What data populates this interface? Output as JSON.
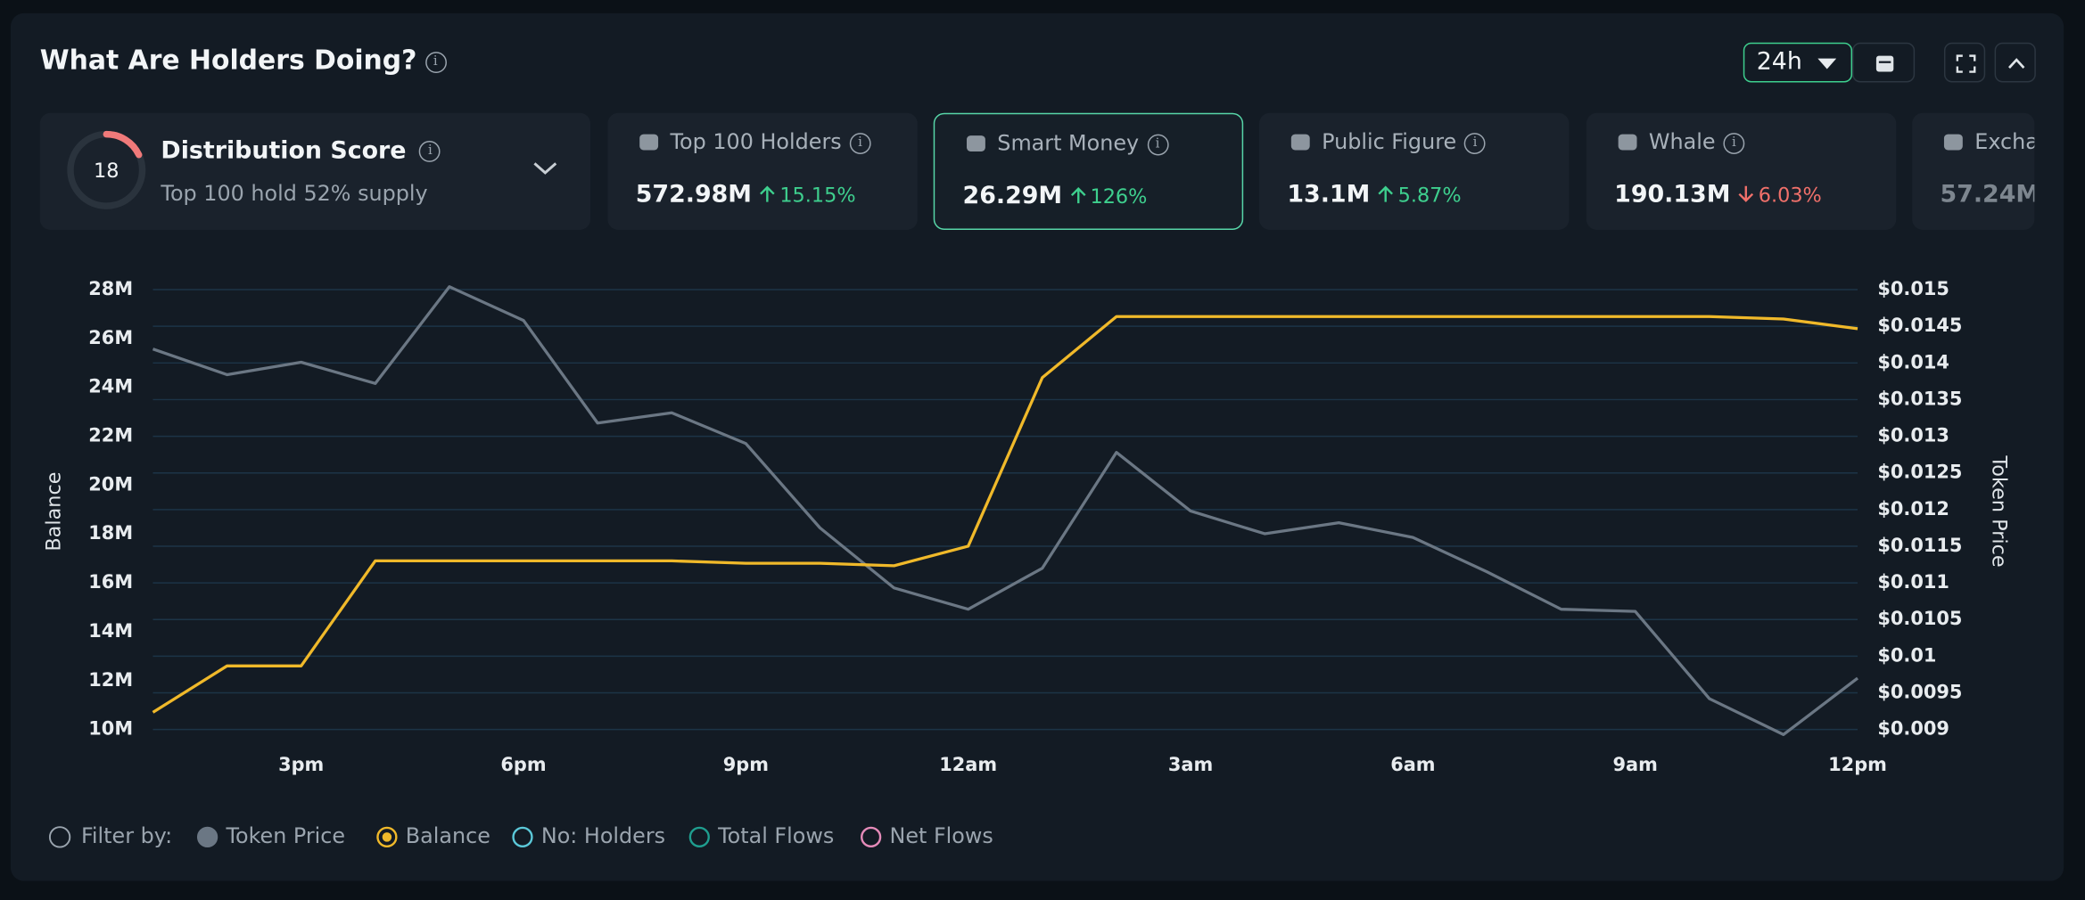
{
  "header": {
    "title": "What Are Holders Doing?",
    "period": "24h"
  },
  "distribution": {
    "score": 18,
    "title": "Distribution Score",
    "subtitle": "Top 100 hold 52% supply"
  },
  "cards": [
    {
      "title": "Top 100 Holders",
      "value": "572.98M",
      "change": "15.15%",
      "direction": "up",
      "selected": false
    },
    {
      "title": "Smart Money",
      "value": "26.29M",
      "change": "126%",
      "direction": "up",
      "selected": true
    },
    {
      "title": "Public Figure",
      "value": "13.1M",
      "change": "5.87%",
      "direction": "up",
      "selected": false
    },
    {
      "title": "Whale",
      "value": "190.13M",
      "change": "6.03%",
      "direction": "down",
      "selected": false
    },
    {
      "title": "Exchange",
      "value": "57.24M",
      "change": "",
      "direction": "up",
      "selected": false
    }
  ],
  "chart_data": {
    "type": "line",
    "y_label": "Balance",
    "y2_label": "Token Price",
    "categories": [
      null,
      null,
      "3pm",
      null,
      null,
      "6pm",
      null,
      null,
      "9pm",
      null,
      null,
      "12am",
      null,
      null,
      "3am",
      null,
      null,
      "6am",
      null,
      null,
      "9am",
      null,
      null,
      "12pm"
    ],
    "series": [
      {
        "name": "Token Price",
        "color": "#6b7784",
        "axis": "y2",
        "values": [
          0.01419,
          0.01384,
          0.01401,
          0.01372,
          0.01504,
          0.01458,
          0.01318,
          0.01332,
          0.0129,
          0.01175,
          0.01093,
          0.01064,
          0.0112,
          0.01278,
          0.01198,
          0.01167,
          0.01182,
          0.01162,
          0.01115,
          0.01064,
          0.01061,
          0.00942,
          0.00893,
          0.0097
        ]
      },
      {
        "name": "Balance",
        "color": "#f0b92a",
        "values": [
          10700000,
          12600000,
          12600000,
          16900000,
          16900000,
          16900000,
          16900000,
          16900000,
          16800000,
          16800000,
          16700000,
          17500000,
          24400000,
          26900000,
          26900000,
          26900000,
          26900000,
          26900000,
          26900000,
          26900000,
          26900000,
          26900000,
          26800000,
          26400000
        ]
      }
    ],
    "ylim": [
      10000000,
      28000000
    ],
    "yticks": [
      {
        "value": 10000000,
        "label": "10M"
      },
      {
        "value": 12000000,
        "label": "12M"
      },
      {
        "value": 14000000,
        "label": "14M"
      },
      {
        "value": 16000000,
        "label": "16M"
      },
      {
        "value": 18000000,
        "label": "18M"
      },
      {
        "value": 20000000,
        "label": "20M"
      },
      {
        "value": 22000000,
        "label": "22M"
      },
      {
        "value": 24000000,
        "label": "24M"
      },
      {
        "value": 26000000,
        "label": "26M"
      },
      {
        "value": 28000000,
        "label": "28M"
      }
    ],
    "y2lim": [
      0.009,
      0.015
    ],
    "y2ticks": [
      {
        "value": 0.009,
        "label": "$0.009"
      },
      {
        "value": 0.0095,
        "label": "$0.0095"
      },
      {
        "value": 0.01,
        "label": "$0.01"
      },
      {
        "value": 0.0105,
        "label": "$0.0105"
      },
      {
        "value": 0.011,
        "label": "$0.011"
      },
      {
        "value": 0.0115,
        "label": "$0.0115"
      },
      {
        "value": 0.012,
        "label": "$0.012"
      },
      {
        "value": 0.0125,
        "label": "$0.0125"
      },
      {
        "value": 0.013,
        "label": "$0.013"
      },
      {
        "value": 0.0135,
        "label": "$0.0135"
      },
      {
        "value": 0.014,
        "label": "$0.014"
      },
      {
        "value": 0.0145,
        "label": "$0.0145"
      },
      {
        "value": 0.015,
        "label": "$0.015"
      }
    ],
    "grid": true,
    "grid_color": "#1c3447",
    "filter_label": "Filter by:",
    "filters": [
      {
        "name": "No: Holders",
        "color": "#5bc8d8"
      },
      {
        "name": "Total Flows",
        "color": "#1f9e8f"
      },
      {
        "name": "Net Flows",
        "color": "#e58bb9"
      }
    ]
  }
}
